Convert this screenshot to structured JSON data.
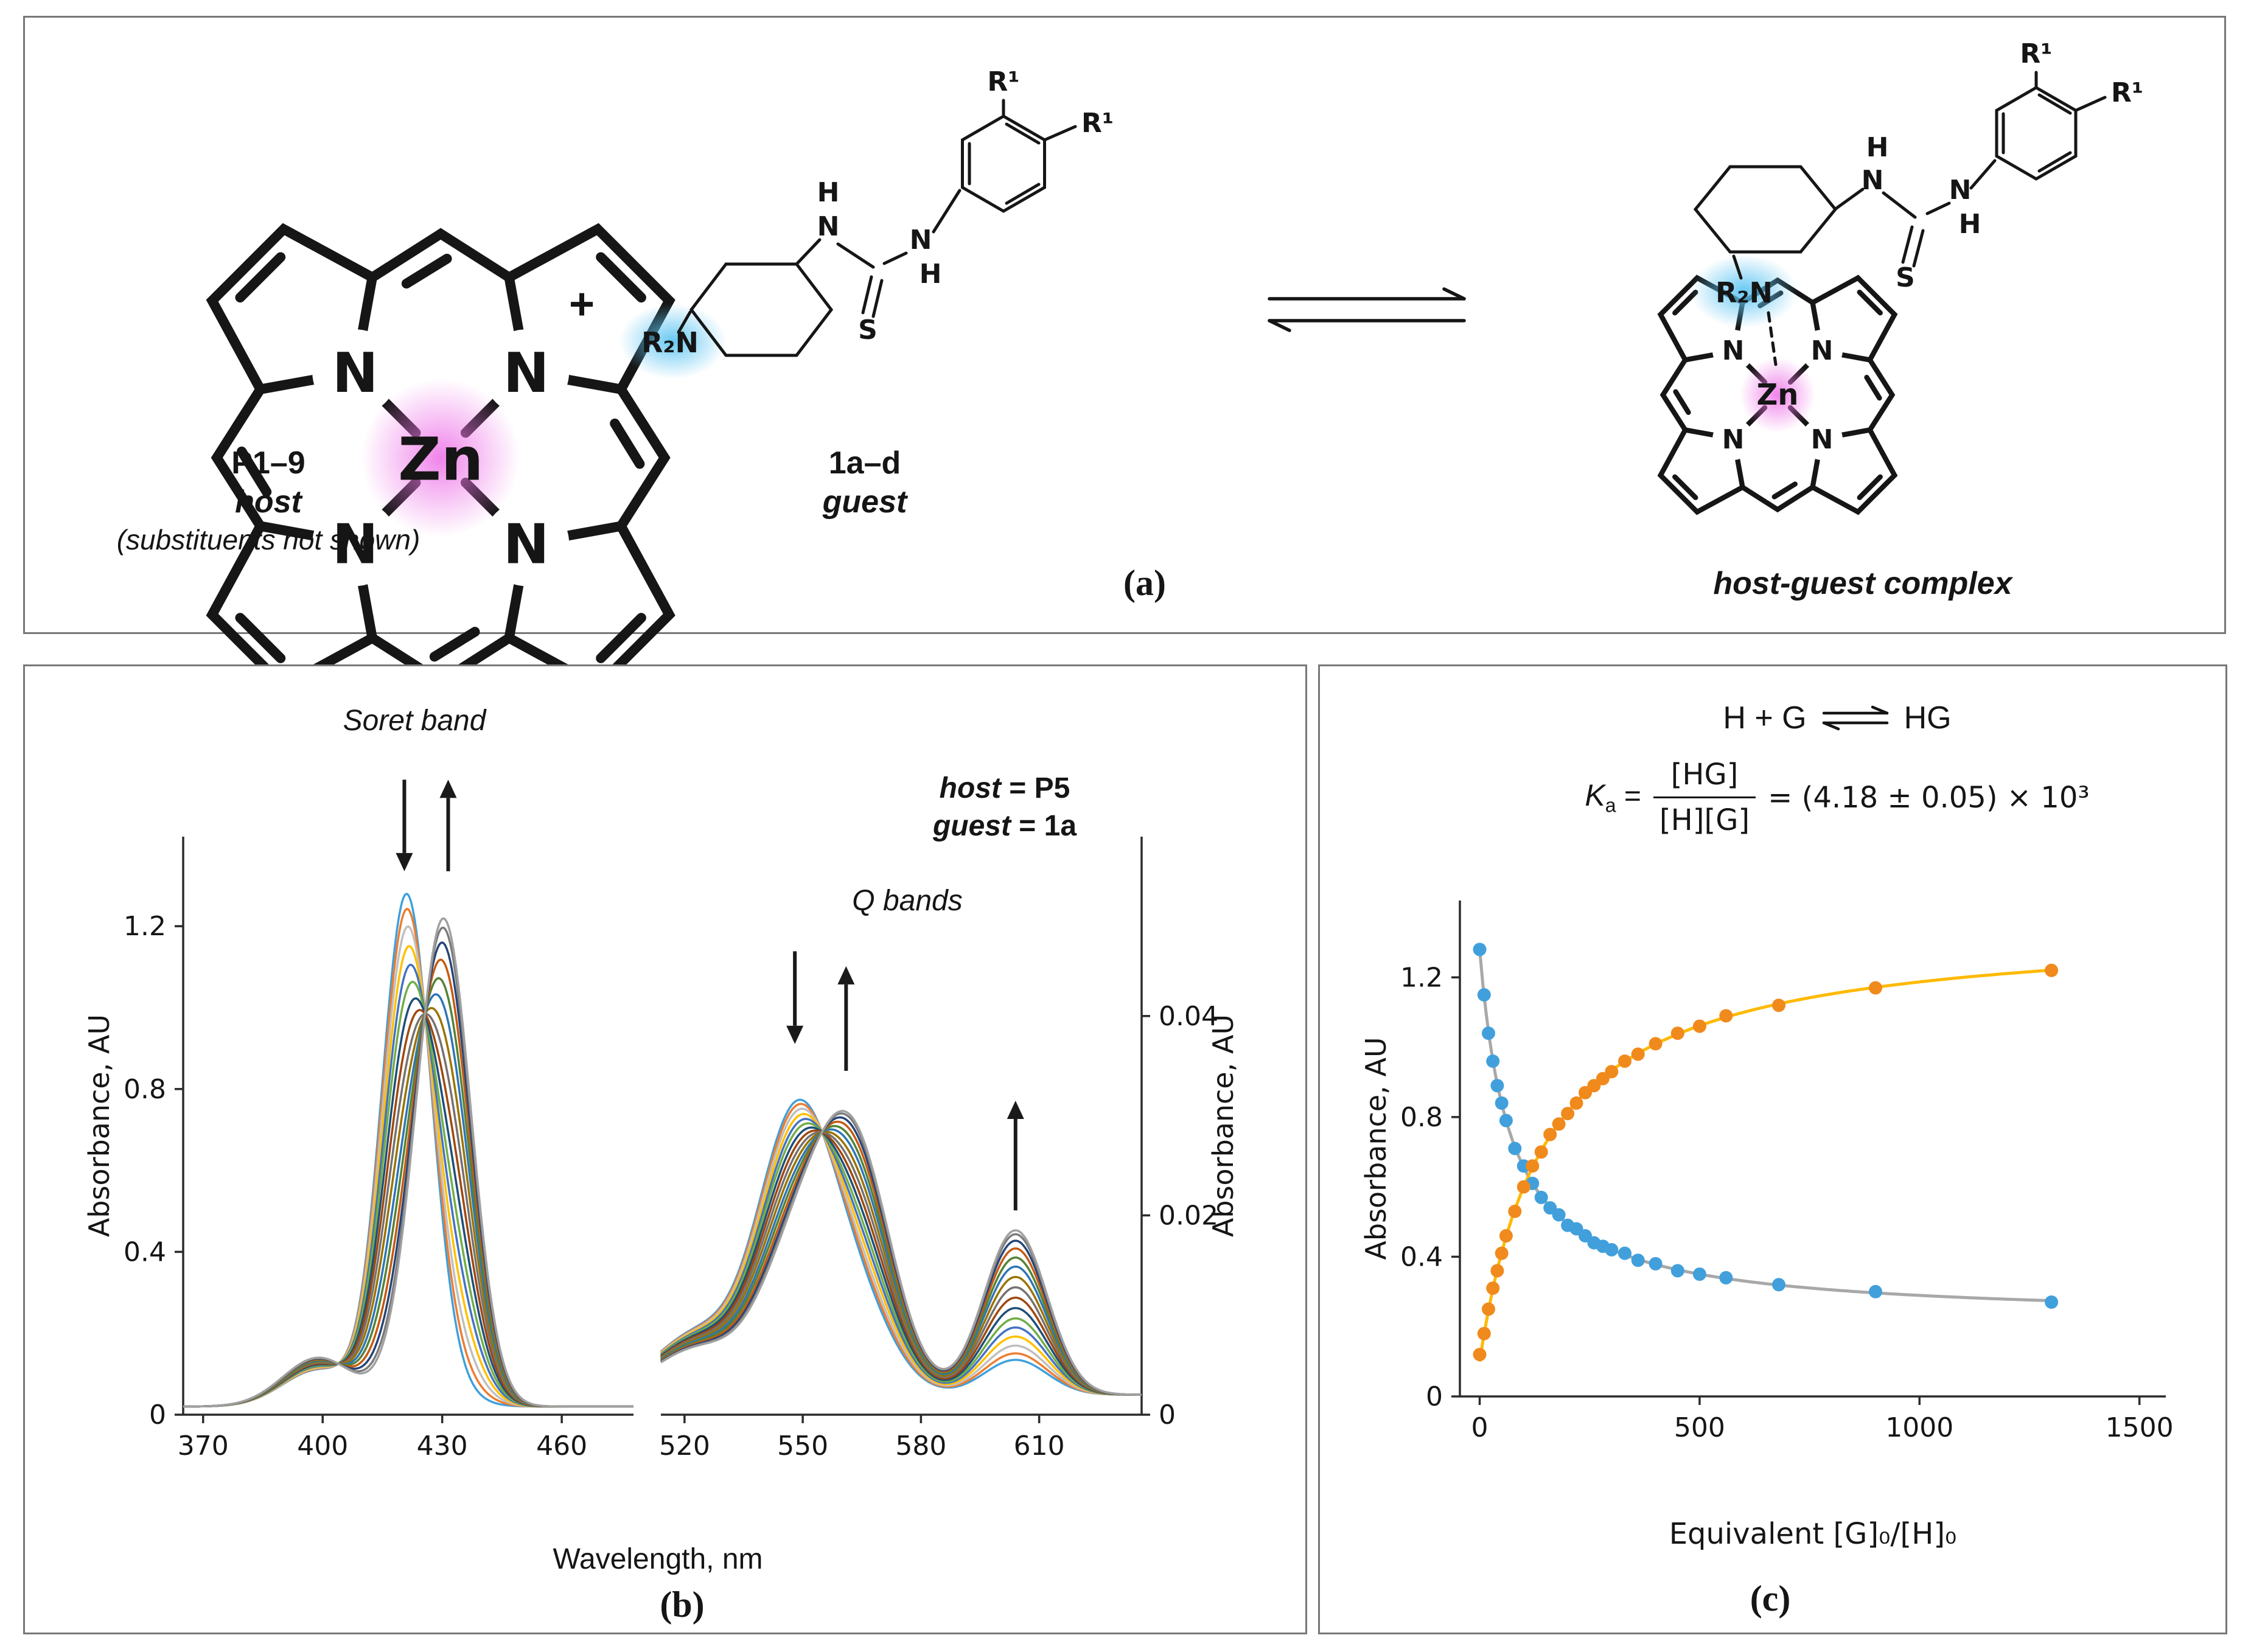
{
  "figure": {
    "panel_a_label": "(a)",
    "panel_b_label": "(b)",
    "panel_c_label": "(c)"
  },
  "panel_a": {
    "host_name": "P1–9",
    "host_role": "host",
    "host_note": "(substituents not shown)",
    "plus": "+",
    "guest_name": "1a–d",
    "guest_role": "guest",
    "complex_label": "host-guest complex",
    "atoms": {
      "N": "N",
      "H": "H",
      "S": "S",
      "Zn": "Zn",
      "R2N": "R₂N",
      "R1": "R¹"
    },
    "glow_colors": {
      "zinc": "#ee76e8",
      "amine": "#5ec5f2"
    }
  },
  "panel_b": {
    "soret_annotation": "Soret band",
    "q_annotation": "Q bands",
    "note": {
      "host_label": "host",
      "host_rest": " = P5",
      "guest_label": "guest",
      "guest_rest": " = 1a"
    },
    "xlabel": "Wavelength, nm",
    "ylabel_left": "Absorbance, AU",
    "ylabel_right": "Absorbance, AU"
  },
  "panel_c": {
    "equilibrium": {
      "lhs": "H + G",
      "rhs": "HG"
    },
    "ka": {
      "symbol": "K",
      "sub": "a",
      "eq": " = ",
      "numerator": "[HG]",
      "denominator": "[H][G]",
      "rhs": "= (4.18 ± 0.05) × 10³"
    },
    "ylabel": "Absorbance, AU",
    "xlabel": "Equivalent [G]₀/[H]₀"
  },
  "chart_data": [
    {
      "id": "soret",
      "type": "line",
      "xlabel": "Wavelength, nm",
      "ylabel": "Absorbance, AU",
      "x_range": [
        365,
        478
      ],
      "x_ticks": [
        370,
        400,
        430,
        460
      ],
      "y_range": [
        0,
        1.42
      ],
      "y_ticks": [
        0,
        0.4,
        0.8,
        1.2
      ],
      "y_axis_side": "left",
      "annotation": "Soret band",
      "grid": false,
      "series_t": [
        0,
        0.05,
        0.11,
        0.18,
        0.25,
        0.32,
        0.4,
        0.48,
        0.56,
        0.64,
        0.72,
        0.79,
        0.86,
        0.92,
        0.97,
        1
      ],
      "palette": [
        "#3FA0DC",
        "#ED7D31",
        "#BFBFBF",
        "#FFC000",
        "#4472C4",
        "#70AD47",
        "#1F4E79",
        "#9E480E",
        "#767171",
        "#997300",
        "#2E75B6",
        "#548235",
        "#C55A11",
        "#264478",
        "#7B7B7B",
        "#A0A0A0"
      ],
      "baseline": 0.02,
      "peak_components": [
        {
          "center": 421,
          "sigma": 6.2,
          "amp_start": 1.24,
          "amp_end": 0.06
        },
        {
          "center": 430.5,
          "sigma": 6.8,
          "amp_start": 0.04,
          "amp_end": 1.18
        },
        {
          "center": 399,
          "sigma": 9.0,
          "amp_start": 0.09,
          "amp_end": 0.12
        }
      ],
      "arrows": [
        {
          "x": 420.5,
          "tail": 1.56,
          "tip": 1.335
        },
        {
          "x": 431.5,
          "tail": 1.335,
          "tip": 1.56
        }
      ]
    },
    {
      "id": "qbands",
      "type": "line",
      "xlabel": "Wavelength, nm",
      "ylabel": "Absorbance, AU",
      "x_range": [
        514,
        636
      ],
      "x_ticks": [
        520,
        550,
        580,
        610
      ],
      "y_range": [
        0,
        0.058
      ],
      "y_ticks": [
        0,
        0.02,
        0.04
      ],
      "y_axis_side": "right",
      "annotation": "Q bands",
      "grid": false,
      "series_t": [
        0,
        0.05,
        0.11,
        0.18,
        0.25,
        0.32,
        0.4,
        0.48,
        0.56,
        0.64,
        0.72,
        0.79,
        0.86,
        0.92,
        0.97,
        1
      ],
      "palette": [
        "#3FA0DC",
        "#ED7D31",
        "#BFBFBF",
        "#FFC000",
        "#4472C4",
        "#70AD47",
        "#1F4E79",
        "#9E480E",
        "#767171",
        "#997300",
        "#2E75B6",
        "#548235",
        "#C55A11",
        "#264478",
        "#7B7B7B",
        "#A0A0A0"
      ],
      "baseline": 0.002,
      "peak_components": [
        {
          "center": 548,
          "sigma": 9.5,
          "amp_start": 0.0265,
          "amp_end": 0.0125
        },
        {
          "center": 563,
          "sigma": 9.5,
          "amp_start": 0.0085,
          "amp_end": 0.024
        },
        {
          "center": 604,
          "sigma": 8.0,
          "amp_start": 0.0035,
          "amp_end": 0.0165
        },
        {
          "center": 523,
          "sigma": 11.0,
          "amp_start": 0.006,
          "amp_end": 0.0045
        }
      ],
      "arrows": [
        {
          "x": 548,
          "tail": 0.0465,
          "tip": 0.0372
        },
        {
          "x": 561,
          "tail": 0.0345,
          "tip": 0.045
        },
        {
          "x": 604,
          "tail": 0.0205,
          "tip": 0.0315
        }
      ]
    },
    {
      "id": "binding",
      "type": "scatter",
      "xlabel": "Equivalent [G]₀/[H]₀",
      "ylabel": "Absorbance, AU",
      "x_range": [
        -45,
        1560
      ],
      "x_ticks": [
        0,
        500,
        1000,
        1500
      ],
      "y_range": [
        0,
        1.42
      ],
      "y_ticks": [
        0,
        0.4,
        0.8,
        1.2
      ],
      "y_axis_side": "left",
      "grid": false,
      "equivalents": [
        0,
        10,
        20,
        30,
        40,
        50,
        60,
        80,
        100,
        120,
        140,
        160,
        180,
        200,
        220,
        240,
        260,
        280,
        300,
        330,
        360,
        400,
        450,
        500,
        560,
        680,
        900,
        1300
      ],
      "series": [
        {
          "marker_color": "#41A0DC",
          "fit_color": "#A8A8A8",
          "fit": {
            "form": "decay",
            "base": 0.22,
            "amp": 1.06,
            "k": 70
          },
          "values": [
            1.28,
            1.15,
            1.04,
            0.96,
            0.89,
            0.84,
            0.79,
            0.71,
            0.66,
            0.61,
            0.57,
            0.54,
            0.52,
            0.49,
            0.48,
            0.46,
            0.44,
            0.43,
            0.42,
            0.41,
            0.39,
            0.38,
            0.36,
            0.35,
            0.34,
            0.32,
            0.3,
            0.27
          ]
        },
        {
          "marker_color": "#F08A1D",
          "fit_color": "#FFB900",
          "fit": {
            "form": "rise",
            "base": 0.1,
            "amp": 1.25,
            "k": 150
          },
          "values": [
            0.12,
            0.18,
            0.25,
            0.31,
            0.36,
            0.41,
            0.46,
            0.53,
            0.6,
            0.66,
            0.7,
            0.75,
            0.78,
            0.81,
            0.84,
            0.87,
            0.89,
            0.91,
            0.93,
            0.96,
            0.98,
            1.01,
            1.04,
            1.06,
            1.09,
            1.12,
            1.17,
            1.22
          ]
        }
      ]
    }
  ]
}
